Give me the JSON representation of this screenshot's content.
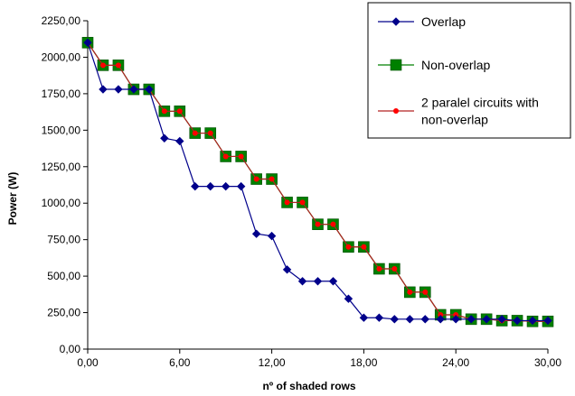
{
  "chart_data": {
    "type": "line",
    "xlabel": "nº of shaded rows",
    "ylabel": "Power (W)",
    "xlim": [
      0,
      30
    ],
    "ylim": [
      0,
      2250
    ],
    "x_ticks": [
      "0,00",
      "6,00",
      "12,00",
      "18,00",
      "24,00",
      "30,00"
    ],
    "x_tick_values": [
      0,
      6,
      12,
      18,
      24,
      30
    ],
    "y_ticks": [
      "0,00",
      "250,00",
      "500,00",
      "750,00",
      "1000,00",
      "1250,00",
      "1500,00",
      "1750,00",
      "2000,00",
      "2250,00"
    ],
    "y_tick_values": [
      0,
      250,
      500,
      750,
      1000,
      1250,
      1500,
      1750,
      2000,
      2250
    ],
    "grid": false,
    "legend_position": "top-right",
    "series": [
      {
        "name": "Overlap",
        "color": "#00008b",
        "marker": "diamond",
        "x": [
          0,
          1,
          2,
          3,
          4,
          5,
          6,
          7,
          8,
          9,
          10,
          11,
          12,
          13,
          14,
          15,
          16,
          17,
          18,
          19,
          20,
          21,
          22,
          23,
          24,
          25,
          26,
          27,
          28,
          29,
          30
        ],
        "values": [
          2100,
          1780,
          1780,
          1780,
          1780,
          1445,
          1425,
          1115,
          1115,
          1115,
          1115,
          790,
          775,
          545,
          465,
          465,
          465,
          345,
          215,
          215,
          205,
          205,
          205,
          205,
          205,
          205,
          205,
          205,
          195,
          195,
          195
        ]
      },
      {
        "name": "Non-overlap",
        "color": "#008000",
        "marker": "square",
        "x": [
          0,
          1,
          2,
          3,
          4,
          5,
          6,
          7,
          8,
          9,
          10,
          11,
          12,
          13,
          14,
          15,
          16,
          17,
          18,
          19,
          20,
          21,
          22,
          23,
          24,
          25,
          26,
          27,
          28,
          29,
          30
        ],
        "values": [
          2100,
          1945,
          1945,
          1780,
          1780,
          1630,
          1630,
          1480,
          1480,
          1320,
          1320,
          1165,
          1165,
          1005,
          1005,
          855,
          855,
          700,
          700,
          550,
          550,
          390,
          390,
          235,
          235,
          205,
          205,
          195,
          195,
          190,
          190
        ]
      },
      {
        "name": "2 paralel circuits with non-overlap",
        "legend_lines": [
          "2 paralel circuits with",
          "non-overlap"
        ],
        "color": "#b22222",
        "marker_color": "#ff0000",
        "marker": "circle",
        "x": [
          0,
          1,
          2,
          3,
          4,
          5,
          6,
          7,
          8,
          9,
          10,
          11,
          12,
          13,
          14,
          15,
          16,
          17,
          18,
          19,
          20,
          21,
          22,
          23,
          24,
          25,
          26,
          27,
          28,
          29,
          30
        ],
        "values": [
          2100,
          1945,
          1945,
          1780,
          1780,
          1630,
          1630,
          1480,
          1480,
          1320,
          1320,
          1165,
          1165,
          1005,
          1005,
          855,
          855,
          700,
          700,
          550,
          550,
          390,
          390,
          235,
          235,
          205,
          205,
          195,
          195,
          190,
          190
        ]
      }
    ]
  }
}
